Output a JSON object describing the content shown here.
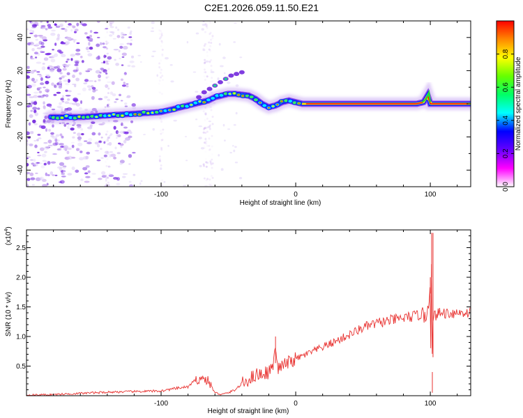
{
  "title": "C2E1.2026.059.11.50.E21",
  "chart_data": [
    {
      "type": "heatmap",
      "xlabel": "Height of straight line (km)",
      "ylabel": "Frequency (Hz)",
      "xlim": [
        -200,
        130
      ],
      "ylim": [
        -50,
        50
      ],
      "x_ticks": [
        -100,
        0,
        100
      ],
      "y_ticks": [
        -40,
        -20,
        0,
        20,
        40
      ],
      "colorbar": {
        "label": "Normalized spectral amplitude",
        "range": [
          0,
          1
        ],
        "ticks": [
          0.0,
          0.2,
          0.4,
          0.6,
          0.8
        ],
        "colors": [
          "#ffffff",
          "#ff00ff",
          "#6600ff",
          "#0000ff",
          "#00ffff",
          "#00ff66",
          "#66ff00",
          "#ffff00",
          "#ff8800",
          "#ff0000"
        ]
      },
      "ridge": {
        "x": [
          -180,
          -170,
          -160,
          -150,
          -140,
          -130,
          -120,
          -110,
          -100,
          -90,
          -80,
          -70,
          -65,
          -60,
          -55,
          -50,
          -45,
          -40,
          -35,
          -30,
          -25,
          -20,
          -15,
          -10,
          -5,
          0,
          5,
          10,
          20,
          40,
          60,
          80,
          90,
          95,
          98,
          100,
          110,
          120,
          130
        ],
        "y": [
          -8,
          -8,
          -8,
          -7.5,
          -7,
          -6.5,
          -6,
          -5.5,
          -5,
          -3,
          -1,
          1,
          2,
          4,
          5,
          6,
          6,
          5.5,
          5,
          3,
          0,
          -2,
          -1,
          1,
          2,
          1,
          0,
          0,
          0,
          0,
          0,
          0,
          0,
          1,
          5,
          0,
          0,
          0,
          0
        ]
      }
    },
    {
      "type": "line",
      "xlabel": "Height of straight line (km)",
      "ylabel": "SNR (10 * v/v)",
      "multiplier_label": "(x10",
      "multiplier_exp": "4",
      "xlim": [
        -200,
        130
      ],
      "ylim": [
        0,
        2.8
      ],
      "x_ticks": [
        -100,
        0,
        100
      ],
      "y_ticks": [
        0.5,
        1.0,
        1.5,
        2.0,
        2.5
      ],
      "color": "#e8312f",
      "series": [
        {
          "name": "SNR",
          "x": [
            -200,
            -180,
            -160,
            -150,
            -140,
            -120,
            -100,
            -90,
            -80,
            -75,
            -70,
            -65,
            -60,
            -55,
            -50,
            -45,
            -40,
            -30,
            -20,
            -16,
            -15,
            -14,
            -10,
            0,
            10,
            20,
            30,
            40,
            50,
            60,
            70,
            80,
            90,
            95,
            98,
            100,
            100.5,
            101,
            101.5,
            102,
            103,
            105,
            110,
            120,
            130
          ],
          "y": [
            0.01,
            0.02,
            0.04,
            0.05,
            0.06,
            0.07,
            0.08,
            0.12,
            0.15,
            0.25,
            0.3,
            0.25,
            0.05,
            0.02,
            0.05,
            0.1,
            0.2,
            0.35,
            0.4,
            0.55,
            1.0,
            0.45,
            0.5,
            0.62,
            0.72,
            0.82,
            0.92,
            1.03,
            1.15,
            1.22,
            1.27,
            1.31,
            1.35,
            1.4,
            1.45,
            2.0,
            0.4,
            2.75,
            0.05,
            1.2,
            1.35,
            1.38,
            1.4,
            1.4,
            1.41
          ]
        }
      ]
    }
  ]
}
